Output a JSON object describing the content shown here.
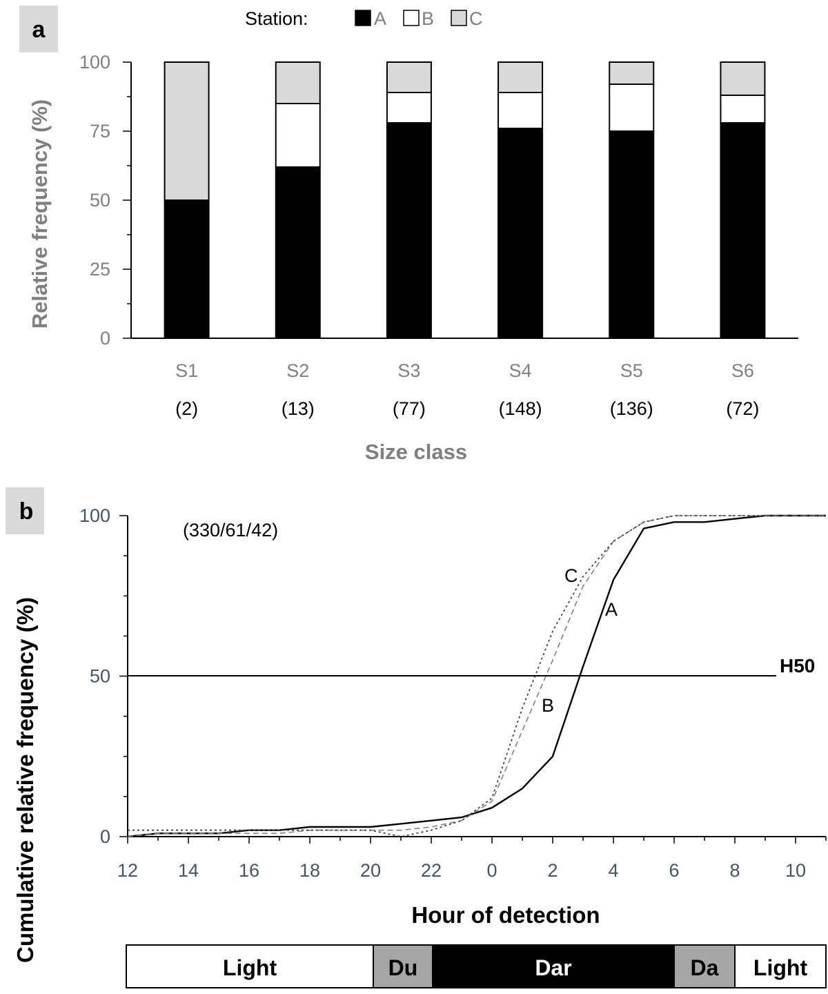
{
  "panels": {
    "a": {
      "letter": "a"
    },
    "b": {
      "letter": "b"
    }
  },
  "legend": {
    "title": "Station:",
    "entries": [
      {
        "label": "A",
        "color": "#000000"
      },
      {
        "label": "B",
        "color": "#ffffff"
      },
      {
        "label": "C",
        "color": "#d9d9d9"
      }
    ]
  },
  "chart_data": [
    {
      "type": "bar",
      "stacked": true,
      "categories": [
        "S1",
        "S2",
        "S3",
        "S4",
        "S5",
        "S6"
      ],
      "category_counts": [
        "(2)",
        "(13)",
        "(77)",
        "(148)",
        "(136)",
        "(72)"
      ],
      "series": [
        {
          "name": "A",
          "color": "#000000",
          "values": [
            50,
            62,
            78,
            76,
            75,
            78
          ]
        },
        {
          "name": "B",
          "color": "#ffffff",
          "values": [
            0,
            23,
            11,
            13,
            17,
            10
          ]
        },
        {
          "name": "C",
          "color": "#d9d9d9",
          "values": [
            50,
            15,
            11,
            11,
            8,
            12
          ]
        }
      ],
      "xlabel": "Size class",
      "ylabel": "Relative frequency (%)",
      "ylim": [
        0,
        100
      ],
      "yticks": [
        0,
        25,
        50,
        75,
        100
      ],
      "grid": false,
      "legend": "top"
    },
    {
      "type": "line",
      "annotation": "(330/61/42)",
      "xlabel": "Hour of detection",
      "ylabel": "Cumulative relative frequency (%)",
      "ylim": [
        0,
        100
      ],
      "yticks": [
        0,
        50,
        100
      ],
      "xticks": [
        "12",
        "14",
        "16",
        "18",
        "20",
        "22",
        "0",
        "2",
        "4",
        "6",
        "8",
        "10"
      ],
      "xrange_elapsed_hours": [
        0,
        23
      ],
      "reference_line": {
        "label": "H50",
        "y": 50
      },
      "series": [
        {
          "name": "A",
          "style": "solid",
          "hours": [
            "12",
            "13",
            "14",
            "15",
            "16",
            "17",
            "18",
            "19",
            "20",
            "21",
            "22",
            "23",
            "0",
            "1",
            "2",
            "3",
            "4",
            "5",
            "6",
            "7",
            "8",
            "9",
            "10",
            "11"
          ],
          "values": [
            0,
            1,
            1,
            1,
            2,
            2,
            3,
            3,
            3,
            4,
            5,
            6,
            9,
            15,
            25,
            53,
            80,
            96,
            98,
            98,
            99,
            100,
            100,
            100
          ]
        },
        {
          "name": "B",
          "style": "dashed",
          "hours": [
            "12",
            "13",
            "14",
            "15",
            "16",
            "17",
            "18",
            "19",
            "20",
            "21",
            "22",
            "23",
            "0",
            "1",
            "2",
            "3",
            "4",
            "5",
            "6",
            "7",
            "8",
            "9",
            "10",
            "11"
          ],
          "values": [
            0,
            1,
            1,
            1,
            1,
            1,
            2,
            2,
            2,
            2,
            3,
            5,
            11,
            33,
            55,
            78,
            92,
            98,
            100,
            100,
            100,
            100,
            100,
            100
          ]
        },
        {
          "name": "C",
          "style": "dotted",
          "hours": [
            "12",
            "13",
            "14",
            "15",
            "16",
            "17",
            "18",
            "19",
            "20",
            "21",
            "22",
            "23",
            "0",
            "1",
            "2",
            "3",
            "4",
            "5",
            "6",
            "7",
            "8",
            "9",
            "10",
            "11"
          ],
          "values": [
            2,
            2,
            2,
            2,
            2,
            2,
            2,
            2,
            2,
            0,
            2,
            5,
            12,
            40,
            64,
            81,
            92,
            98,
            100,
            100,
            100,
            100,
            100,
            100
          ]
        }
      ],
      "light_bar": [
        {
          "label": "Light",
          "fill": "#ffffff",
          "text_color": "#000000"
        },
        {
          "label": "Du",
          "fill": "#a6a6a6",
          "text_color": "#000000"
        },
        {
          "label": "Dar",
          "fill": "#000000",
          "text_color": "#ffffff"
        },
        {
          "label": "Da",
          "fill": "#a6a6a6",
          "text_color": "#000000"
        },
        {
          "label": "Light",
          "fill": "#ffffff",
          "text_color": "#000000"
        }
      ]
    }
  ]
}
